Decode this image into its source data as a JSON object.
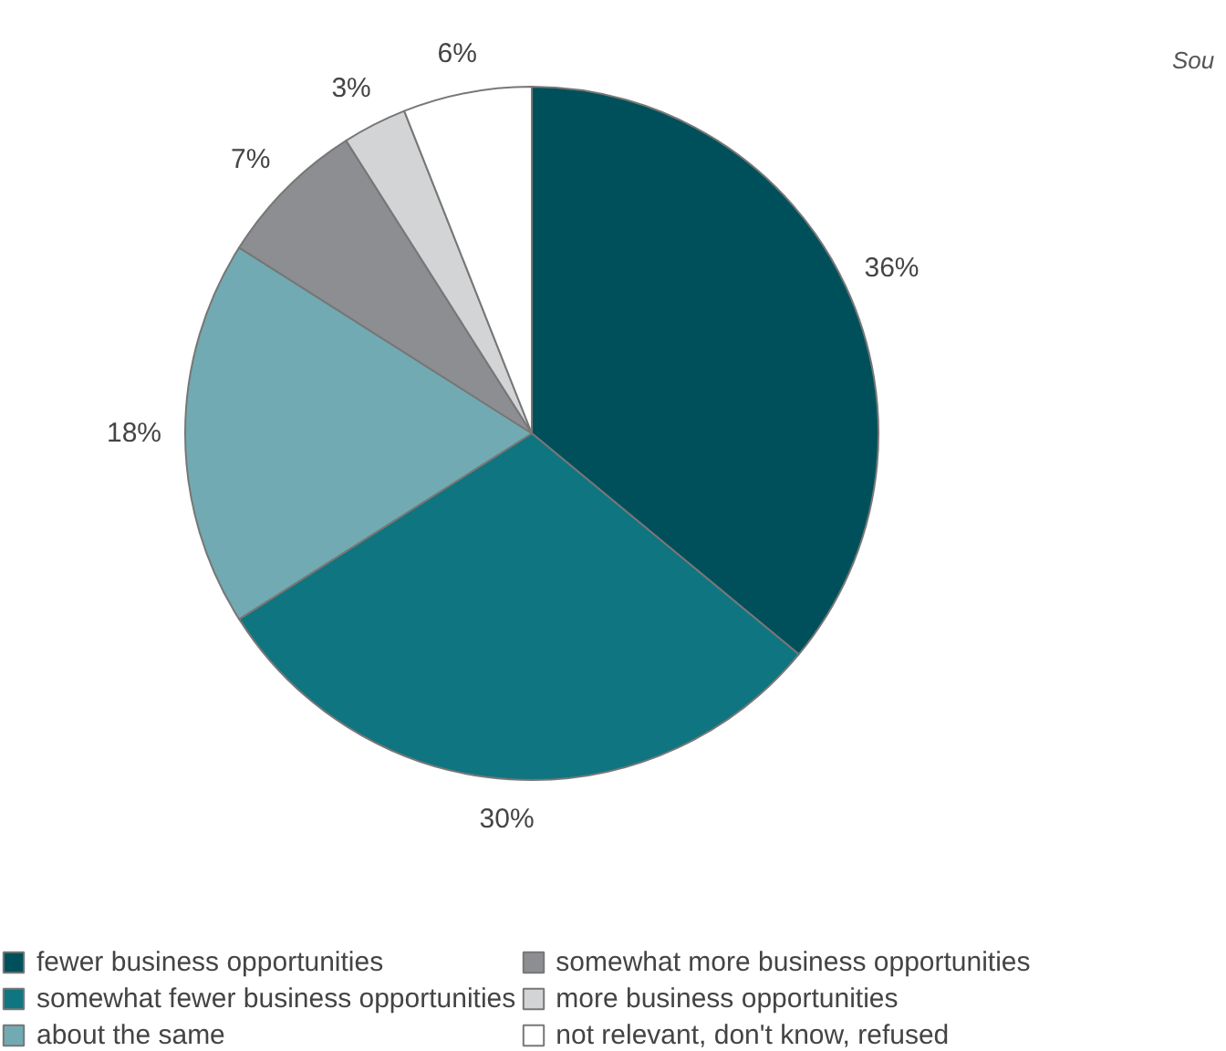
{
  "chart_data": {
    "type": "pie",
    "categories": [
      "fewer business opportunities",
      "somewhat fewer business opportunities",
      "about the same",
      "somewhat more business opportunities",
      "more business opportunities",
      "not relevant, don't know, refused"
    ],
    "values": [
      36,
      30,
      18,
      7,
      3,
      6
    ],
    "value_labels": [
      "36%",
      "30%",
      "18%",
      "7%",
      "3%",
      "6%"
    ],
    "colors": [
      "#00505c",
      "#0f7580",
      "#72aab3",
      "#8c8e91",
      "#d2d4d6",
      "#ffffff"
    ],
    "legend": "bottom",
    "annotations": [
      "Sou"
    ]
  }
}
